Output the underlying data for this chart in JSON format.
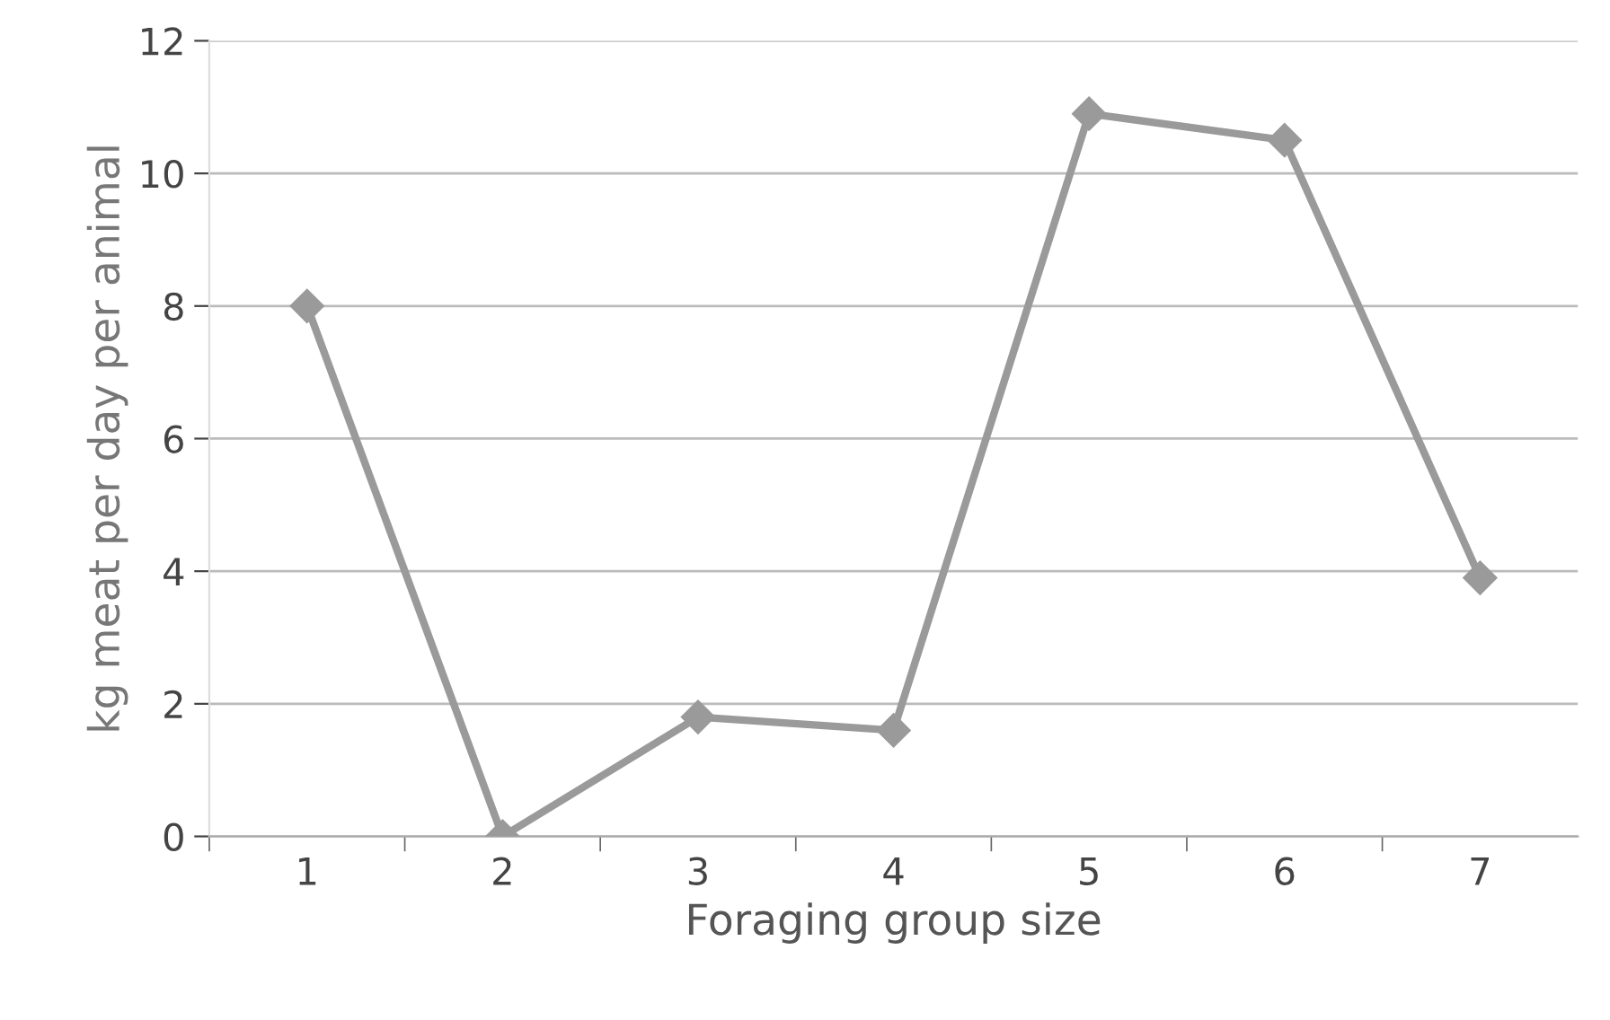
{
  "chart_data": {
    "type": "line",
    "xlabel": "Foraging group size",
    "ylabel": "kg meat per day per animal",
    "categories": [
      "1",
      "2",
      "3",
      "4",
      "5",
      "6",
      "7"
    ],
    "series": [
      {
        "color": "#9a9a9a",
        "values": [
          8,
          0,
          1.8,
          1.6,
          10.9,
          10.5,
          3.9
        ]
      }
    ],
    "ylim": [
      0,
      12
    ],
    "yticks": [
      0,
      2,
      4,
      6,
      8,
      10,
      12
    ],
    "grid": "y",
    "marker": "diamond",
    "line_style": "solid",
    "legend": false
  }
}
